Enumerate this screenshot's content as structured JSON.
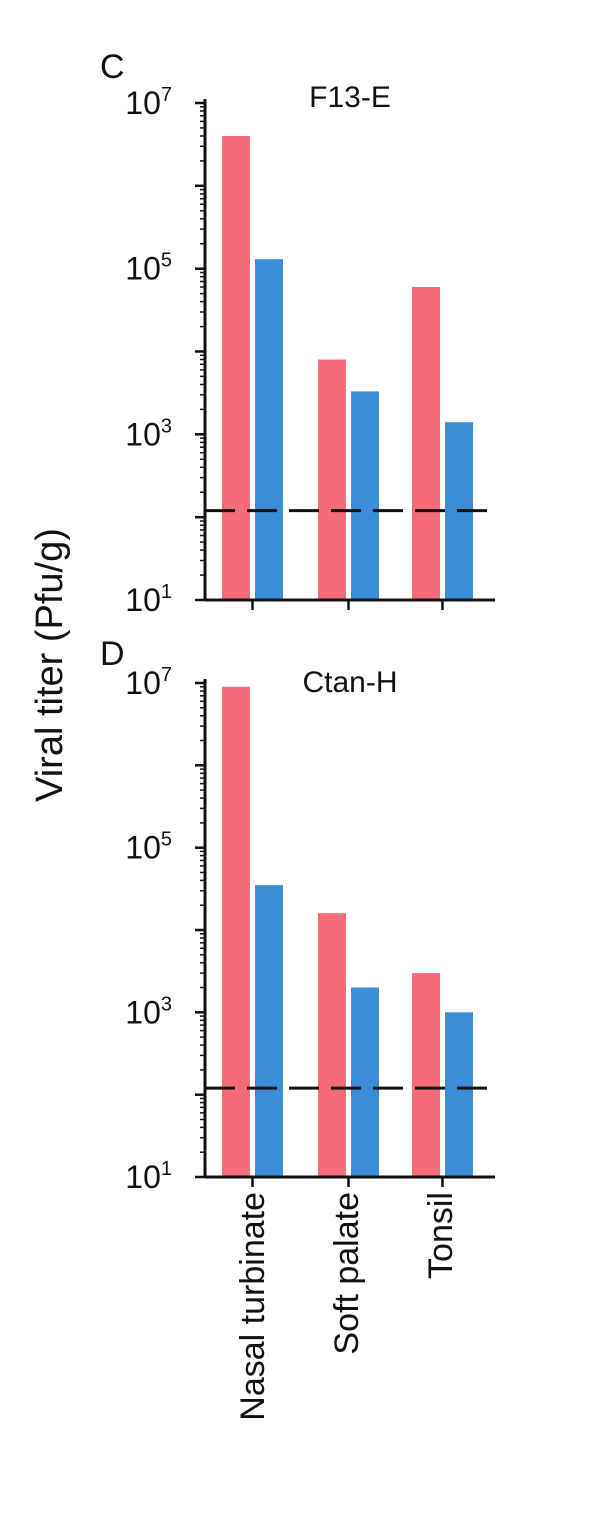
{
  "chart_data": [
    {
      "type": "bar",
      "panel": "C",
      "title": "F13-E",
      "categories": [
        "Nasal turbinate",
        "Soft palate",
        "Tonsil"
      ],
      "series": [
        {
          "color": "#f56b78",
          "values": [
            4000000,
            8000,
            60000
          ]
        },
        {
          "color": "#3c8dd8",
          "values": [
            130000,
            3300,
            1400
          ]
        }
      ],
      "yscale": "log",
      "ylim": [
        10,
        10000000
      ],
      "yticks": [
        {
          "base": "10",
          "exp": "1"
        },
        {
          "base": "10",
          "exp": "3"
        },
        {
          "base": "10",
          "exp": "5"
        },
        {
          "base": "10",
          "exp": "7"
        }
      ],
      "detection_limit": 120,
      "grid": false
    },
    {
      "type": "bar",
      "panel": "D",
      "title": "Ctan-H",
      "categories": [
        "Nasal turbinate",
        "Soft palate",
        "Tonsil"
      ],
      "series": [
        {
          "color": "#f56b78",
          "values": [
            9000000,
            16000,
            3000
          ]
        },
        {
          "color": "#3c8dd8",
          "values": [
            35000,
            2000,
            1000
          ]
        }
      ],
      "yscale": "log",
      "ylim": [
        10,
        10000000
      ],
      "yticks": [
        {
          "base": "10",
          "exp": "1"
        },
        {
          "base": "10",
          "exp": "3"
        },
        {
          "base": "10",
          "exp": "5"
        },
        {
          "base": "10",
          "exp": "7"
        }
      ],
      "detection_limit": 120,
      "grid": false
    }
  ],
  "ylabel": "Viral titer (Pfu/g)",
  "xlabels": [
    "Nasal turbinate",
    "Soft palate",
    "Tonsil"
  ]
}
